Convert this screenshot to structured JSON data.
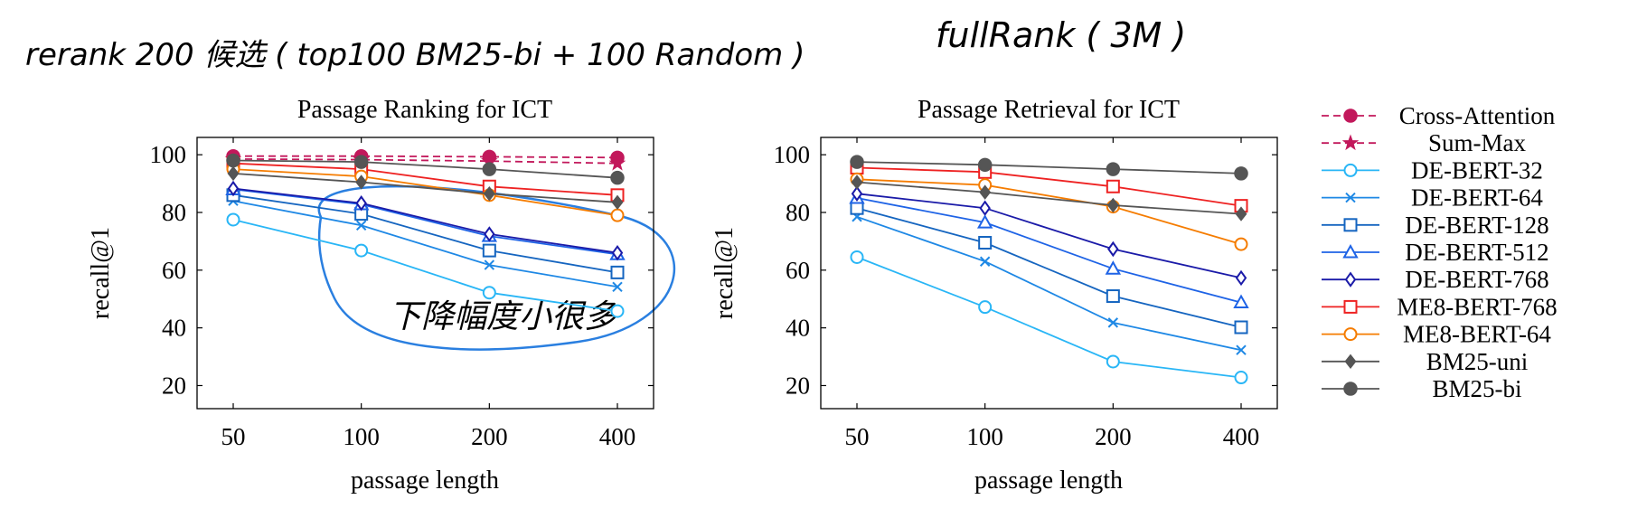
{
  "annotations": {
    "left_note": "rerank 200 候选 ( top100 BM25-bi + 100 Random )",
    "right_note": "fullRank ( 3M )",
    "chart_note": "下降幅度小很多",
    "ink_color": "#2a7fe0"
  },
  "legend": {
    "placement": "right",
    "entries": [
      {
        "label": "Cross-Attention",
        "color": "#c2185b",
        "marker": "filled-circle",
        "dash": true
      },
      {
        "label": "Sum-Max",
        "color": "#c2185b",
        "marker": "star",
        "dash": true
      },
      {
        "label": "DE-BERT-32",
        "color": "#29b6f6",
        "marker": "circle",
        "dash": false
      },
      {
        "label": "DE-BERT-64",
        "color": "#1e88e5",
        "marker": "x",
        "dash": false
      },
      {
        "label": "DE-BERT-128",
        "color": "#1565c0",
        "marker": "square",
        "dash": false
      },
      {
        "label": "DE-BERT-512",
        "color": "#1e63e6",
        "marker": "triangle",
        "dash": false
      },
      {
        "label": "DE-BERT-768",
        "color": "#1a1aa8",
        "marker": "diamond",
        "dash": false
      },
      {
        "label": "ME8-BERT-768",
        "color": "#ee2222",
        "marker": "square",
        "dash": false
      },
      {
        "label": "ME8-BERT-64",
        "color": "#f57c00",
        "marker": "circle",
        "dash": false
      },
      {
        "label": "BM25-uni",
        "color": "#555555",
        "marker": "filled-diamond",
        "dash": false
      },
      {
        "label": "BM25-bi",
        "color": "#555555",
        "marker": "filled-circle",
        "dash": false
      }
    ]
  },
  "chart_data": [
    {
      "type": "line",
      "title": "Passage Ranking for ICT",
      "xlabel": "passage length",
      "ylabel": "recall@1",
      "categories": [
        "50",
        "100",
        "200",
        "400"
      ],
      "yticks": [
        "20",
        "40",
        "60",
        "80",
        "100"
      ],
      "ylim": [
        12,
        106
      ],
      "grid": false,
      "series": [
        {
          "name": "Cross-Attention",
          "values": [
            99.5,
            99.5,
            99.3,
            99.0
          ]
        },
        {
          "name": "Sum-Max",
          "values": [
            98.5,
            98.3,
            97.8,
            97.0
          ]
        },
        {
          "name": "DE-BERT-32",
          "values": [
            77.5,
            66.8,
            52.2,
            45.8
          ]
        },
        {
          "name": "DE-BERT-64",
          "values": [
            84.0,
            75.5,
            61.8,
            54.2
          ]
        },
        {
          "name": "DE-BERT-128",
          "values": [
            86.0,
            79.5,
            66.8,
            59.2
          ]
        },
        {
          "name": "DE-BERT-512",
          "values": [
            88.0,
            82.8,
            71.8,
            65.5
          ]
        },
        {
          "name": "DE-BERT-768",
          "values": [
            88.3,
            83.2,
            72.5,
            66.0
          ]
        },
        {
          "name": "ME8-BERT-768",
          "values": [
            97.0,
            95.0,
            89.0,
            86.0
          ]
        },
        {
          "name": "ME8-BERT-64",
          "values": [
            95.0,
            92.5,
            86.0,
            79.0
          ]
        },
        {
          "name": "BM25-uni",
          "values": [
            93.5,
            90.5,
            86.5,
            83.5
          ]
        },
        {
          "name": "BM25-bi",
          "values": [
            98.0,
            97.5,
            95.0,
            92.0
          ]
        }
      ]
    },
    {
      "type": "line",
      "title": "Passage Retrieval for ICT",
      "xlabel": "passage length",
      "ylabel": "recall@1",
      "categories": [
        "50",
        "100",
        "200",
        "400"
      ],
      "yticks": [
        "20",
        "40",
        "60",
        "80",
        "100"
      ],
      "ylim": [
        12,
        106
      ],
      "grid": false,
      "series": [
        {
          "name": "DE-BERT-32",
          "values": [
            64.5,
            47.2,
            28.3,
            22.8
          ]
        },
        {
          "name": "DE-BERT-64",
          "values": [
            78.5,
            63.0,
            41.8,
            32.3
          ]
        },
        {
          "name": "DE-BERT-128",
          "values": [
            81.5,
            69.5,
            51.0,
            40.2
          ]
        },
        {
          "name": "DE-BERT-512",
          "values": [
            85.0,
            76.5,
            60.5,
            48.8
          ]
        },
        {
          "name": "DE-BERT-768",
          "values": [
            86.5,
            81.5,
            67.3,
            57.3
          ]
        },
        {
          "name": "ME8-BERT-768",
          "values": [
            95.5,
            94.0,
            89.0,
            82.3
          ]
        },
        {
          "name": "ME8-BERT-64",
          "values": [
            91.5,
            89.5,
            82.0,
            69.0
          ]
        },
        {
          "name": "BM25-uni",
          "values": [
            90.5,
            87.0,
            82.5,
            79.5
          ]
        },
        {
          "name": "BM25-bi",
          "values": [
            97.5,
            96.5,
            95.0,
            93.5
          ]
        }
      ]
    }
  ]
}
